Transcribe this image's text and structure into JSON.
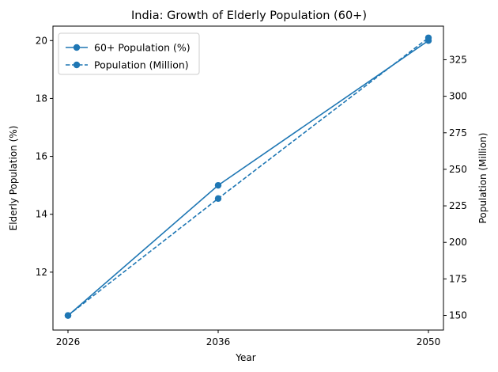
{
  "chart_data": {
    "type": "line",
    "title": "India: Growth of Elderly Population (60+)",
    "xlabel": "Year",
    "ylabel": "Elderly Population (%)",
    "ylabel_right": "Population (Million)",
    "categories": [
      "2026",
      "2036",
      "2050"
    ],
    "x": [
      2026,
      2036,
      2050
    ],
    "xlim": [
      2025,
      2051
    ],
    "ylim": [
      10.0,
      20.5
    ],
    "ylim_right": [
      140,
      348
    ],
    "yticks": [
      12,
      14,
      16,
      18,
      20
    ],
    "yticks_right": [
      150,
      175,
      200,
      225,
      250,
      275,
      300,
      325
    ],
    "grid": false,
    "legend_position": "upper-left",
    "series": [
      {
        "name": "60+ Population (%)",
        "axis": "left",
        "style": "solid",
        "marker": "circle",
        "color": "#1f77b4",
        "values": [
          10.5,
          15.0,
          20.0
        ]
      },
      {
        "name": "Population (Million)",
        "axis": "right",
        "style": "dashed",
        "marker": "circle",
        "color": "#1f77b4",
        "values": [
          150,
          230,
          340
        ]
      }
    ]
  }
}
